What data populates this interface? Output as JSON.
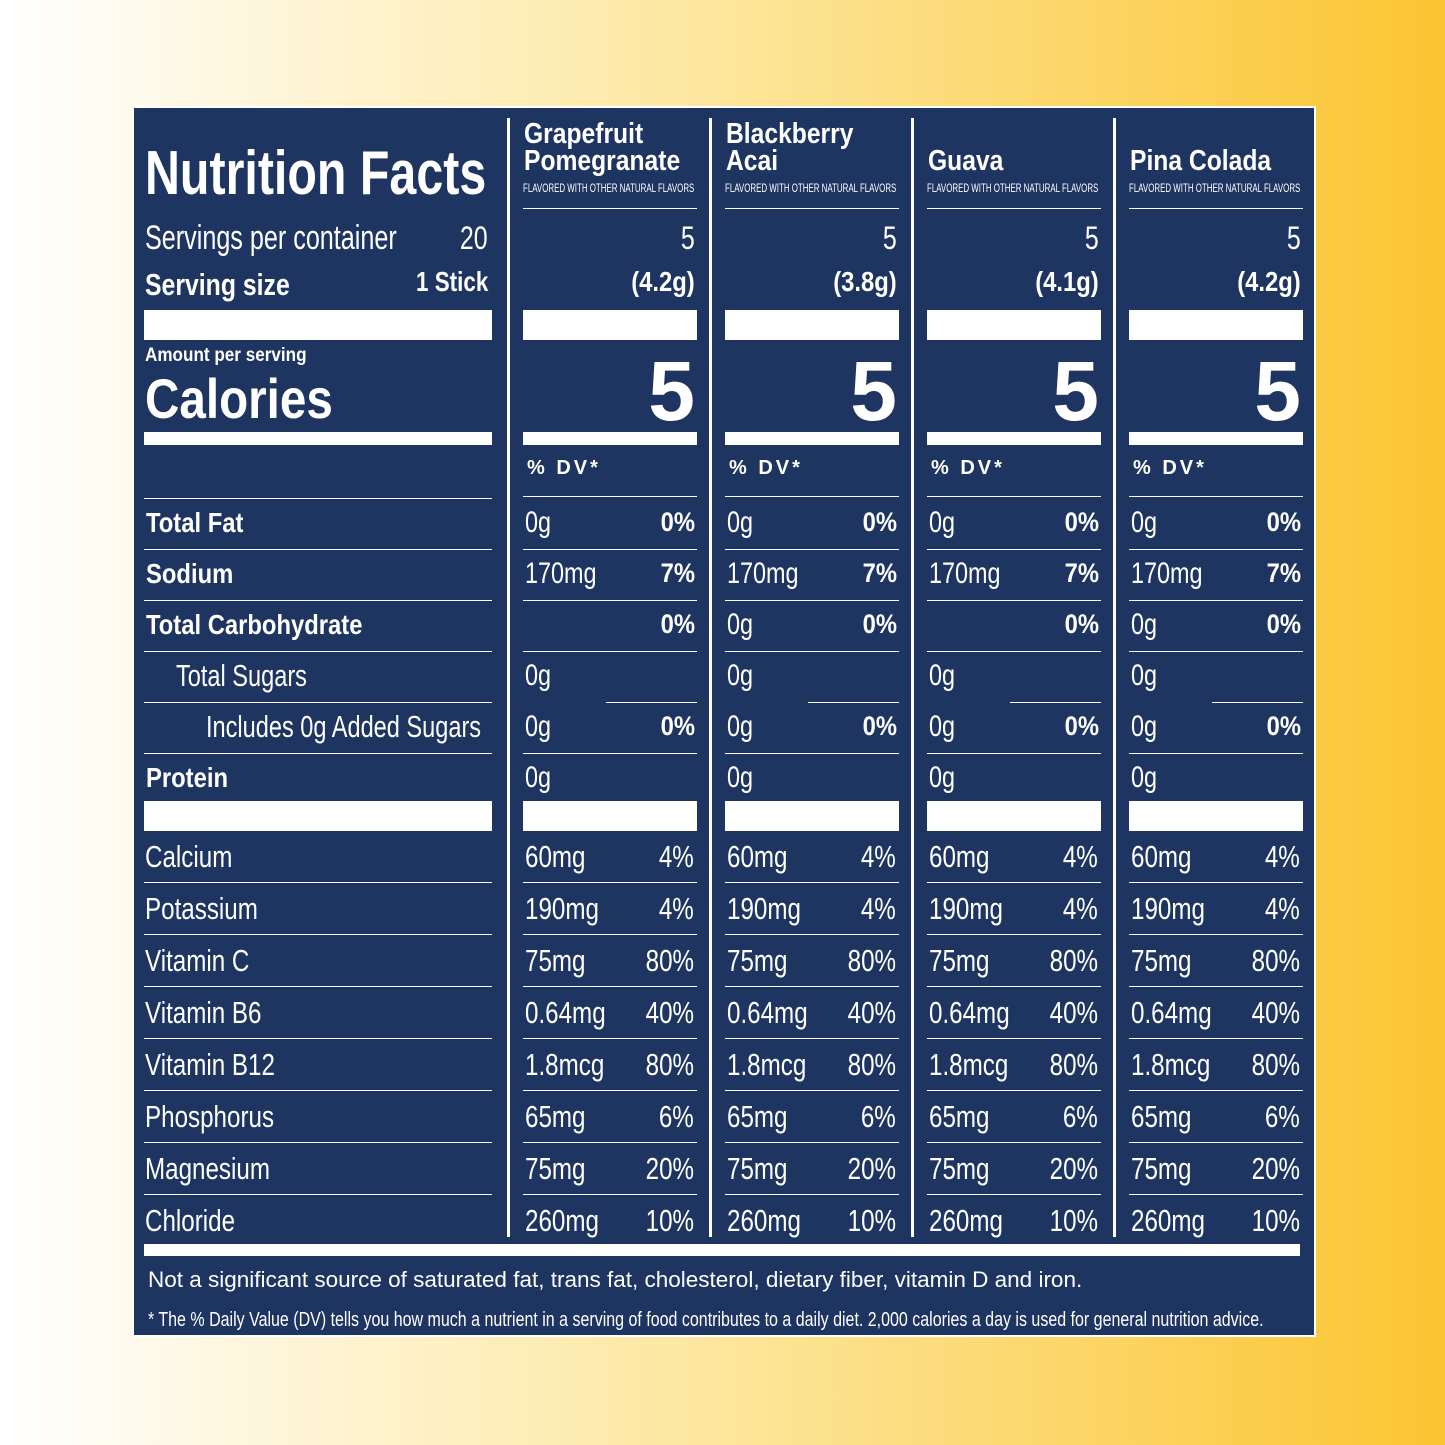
{
  "label": {
    "title": "Nutrition Facts",
    "servings_per_container": {
      "label": "Servings per container",
      "value": "20"
    },
    "serving_size": {
      "label": "Serving size",
      "value": "1 Stick"
    },
    "amount_per_serving": "Amount per serving",
    "calories": "Calories",
    "flavors": [
      {
        "name": "Grapefruit Pomegranate",
        "note": "FLAVORED WITH OTHER NATURAL FLAVORS",
        "servings": "5",
        "serving_size": "(4.2g)",
        "calories": "5",
        "dv_header": "% DV*"
      },
      {
        "name": "Blackberry Acai",
        "note": "FLAVORED WITH OTHER NATURAL FLAVORS",
        "servings": "5",
        "serving_size": "(3.8g)",
        "calories": "5",
        "dv_header": "% DV*"
      },
      {
        "name": "Guava",
        "note": "FLAVORED WITH OTHER NATURAL FLAVORS",
        "servings": "5",
        "serving_size": "(4.1g)",
        "calories": "5",
        "dv_header": "% DV*"
      },
      {
        "name": "Pina Colada",
        "note": "FLAVORED WITH OTHER NATURAL FLAVORS",
        "servings": "5",
        "serving_size": "(4.2g)",
        "calories": "5",
        "dv_header": "% DV*"
      }
    ],
    "nutrients": [
      {
        "name": "Total Fat",
        "indent": 0,
        "amounts": [
          "0g",
          "0g",
          "0g",
          "0g"
        ],
        "dv": [
          "0%",
          "0%",
          "0%",
          "0%"
        ]
      },
      {
        "name": "Sodium",
        "indent": 0,
        "amounts": [
          "170mg",
          "170mg",
          "170mg",
          "170mg"
        ],
        "dv": [
          "7%",
          "7%",
          "7%",
          "7%"
        ]
      },
      {
        "name": "Total Carbohydrate",
        "indent": 0,
        "amounts": [
          null,
          "0g",
          null,
          "0g"
        ],
        "dv": [
          "0%",
          "0%",
          "0%",
          "0%"
        ]
      },
      {
        "name": "Total Sugars",
        "indent": 1,
        "amounts": [
          "0g",
          "0g",
          "0g",
          "0g"
        ]
      },
      {
        "name": "Includes 0g Added Sugars",
        "indent": 2,
        "amounts": [
          "0g",
          "0g",
          "0g",
          "0g"
        ],
        "dv": [
          "0%",
          "0%",
          "0%",
          "0%"
        ]
      },
      {
        "name": "Protein",
        "indent": 0,
        "amounts": [
          "0g",
          "0g",
          "0g",
          "0g"
        ]
      }
    ],
    "vitamins": [
      {
        "name": "Calcium",
        "amounts": [
          "60mg",
          "60mg",
          "60mg",
          "60mg"
        ],
        "dv": [
          "4%",
          "4%",
          "4%",
          "4%"
        ]
      },
      {
        "name": "Potassium",
        "amounts": [
          "190mg",
          "190mg",
          "190mg",
          "190mg"
        ],
        "dv": [
          "4%",
          "4%",
          "4%",
          "4%"
        ]
      },
      {
        "name": "Vitamin C",
        "amounts": [
          "75mg",
          "75mg",
          "75mg",
          "75mg"
        ],
        "dv": [
          "80%",
          "80%",
          "80%",
          "80%"
        ]
      },
      {
        "name": "Vitamin B6",
        "amounts": [
          "0.64mg",
          "0.64mg",
          "0.64mg",
          "0.64mg"
        ],
        "dv": [
          "40%",
          "40%",
          "40%",
          "40%"
        ]
      },
      {
        "name": "Vitamin B12",
        "amounts": [
          "1.8mcg",
          "1.8mcg",
          "1.8mcg",
          "1.8mcg"
        ],
        "dv": [
          "80%",
          "80%",
          "80%",
          "80%"
        ]
      },
      {
        "name": "Phosphorus",
        "amounts": [
          "65mg",
          "65mg",
          "65mg",
          "65mg"
        ],
        "dv": [
          "6%",
          "6%",
          "6%",
          "6%"
        ]
      },
      {
        "name": "Magnesium",
        "amounts": [
          "75mg",
          "75mg",
          "75mg",
          "75mg"
        ],
        "dv": [
          "20%",
          "20%",
          "20%",
          "20%"
        ]
      },
      {
        "name": "Chloride",
        "amounts": [
          "260mg",
          "260mg",
          "260mg",
          "260mg"
        ],
        "dv": [
          "10%",
          "10%",
          "10%",
          "10%"
        ]
      }
    ],
    "footnotes": [
      "Not a significant source of saturated fat, trans fat, cholesterol, dietary fiber, vitamin D and iron.",
      "* The % Daily Value (DV) tells you how much a nutrient in a serving of food contributes to a daily diet. 2,000 calories a day is used for general nutrition advice."
    ]
  }
}
